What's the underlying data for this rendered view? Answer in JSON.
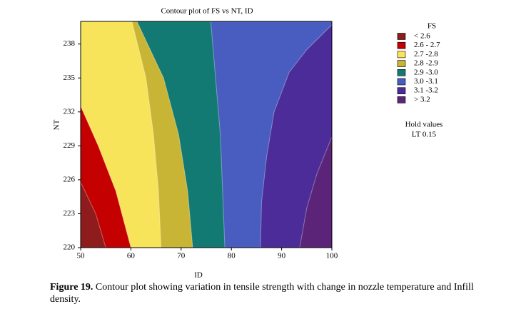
{
  "chart_data": {
    "type": "contour",
    "title": "Contour plot of FS vs NT, ID",
    "x_label": "ID",
    "y_label": "NT",
    "xlim": [
      50,
      100
    ],
    "xticks": [
      50,
      60,
      70,
      80,
      90,
      100
    ],
    "ylim": [
      220,
      240
    ],
    "yticks": [
      220,
      223,
      226,
      229,
      232,
      235,
      238
    ],
    "contours": [
      {
        "x": [
          55,
          53,
          50
        ],
        "y": [
          220,
          223,
          225.8
        ]
      },
      {
        "x": [
          60,
          57,
          53.5,
          50
        ],
        "y": [
          220,
          225,
          229,
          232.5
        ]
      },
      {
        "x": [
          66,
          65.5,
          64.5,
          63,
          60.2
        ],
        "y": [
          220,
          225,
          230,
          235,
          240
        ]
      },
      {
        "x": [
          72.3,
          71.3,
          69.5,
          66.5,
          61.2
        ],
        "y": [
          220,
          225,
          230,
          235,
          240
        ]
      },
      {
        "x": [
          78.7,
          77.8,
          75.9
        ],
        "y": [
          220,
          230,
          240
        ]
      },
      {
        "x": [
          85.8,
          86,
          87,
          88.5,
          91.5,
          95,
          100
        ],
        "y": [
          220,
          224,
          228,
          232,
          235.5,
          237.5,
          239.7
        ]
      },
      {
        "x": [
          93.6,
          95,
          97,
          100
        ],
        "y": [
          220,
          223.5,
          226.5,
          229.8
        ]
      }
    ],
    "legend": {
      "title": "FS",
      "items": [
        {
          "label": "< 2.6",
          "color": "#8e1c1c"
        },
        {
          "label": "2.6 - 2.7",
          "color": "#c40000"
        },
        {
          "label": "2.7 -2.8",
          "color": "#f8e45a"
        },
        {
          "label": "2.8 -2.9",
          "color": "#c9b535"
        },
        {
          "label": "2.9 -3.0",
          "color": "#127a72"
        },
        {
          "label": "3.0 -3.1",
          "color": "#485dbf"
        },
        {
          "label": "3.1 -3.2",
          "color": "#4b2c98"
        },
        {
          "label": "> 3.2",
          "color": "#5c2479"
        }
      ]
    },
    "hold_values": {
      "title": "Hold values",
      "text": "LT 0.15"
    }
  },
  "caption": {
    "label": "Figure 19.",
    "text": "Contour plot showing variation in tensile strength with change in nozzle temperature and Infill density."
  }
}
